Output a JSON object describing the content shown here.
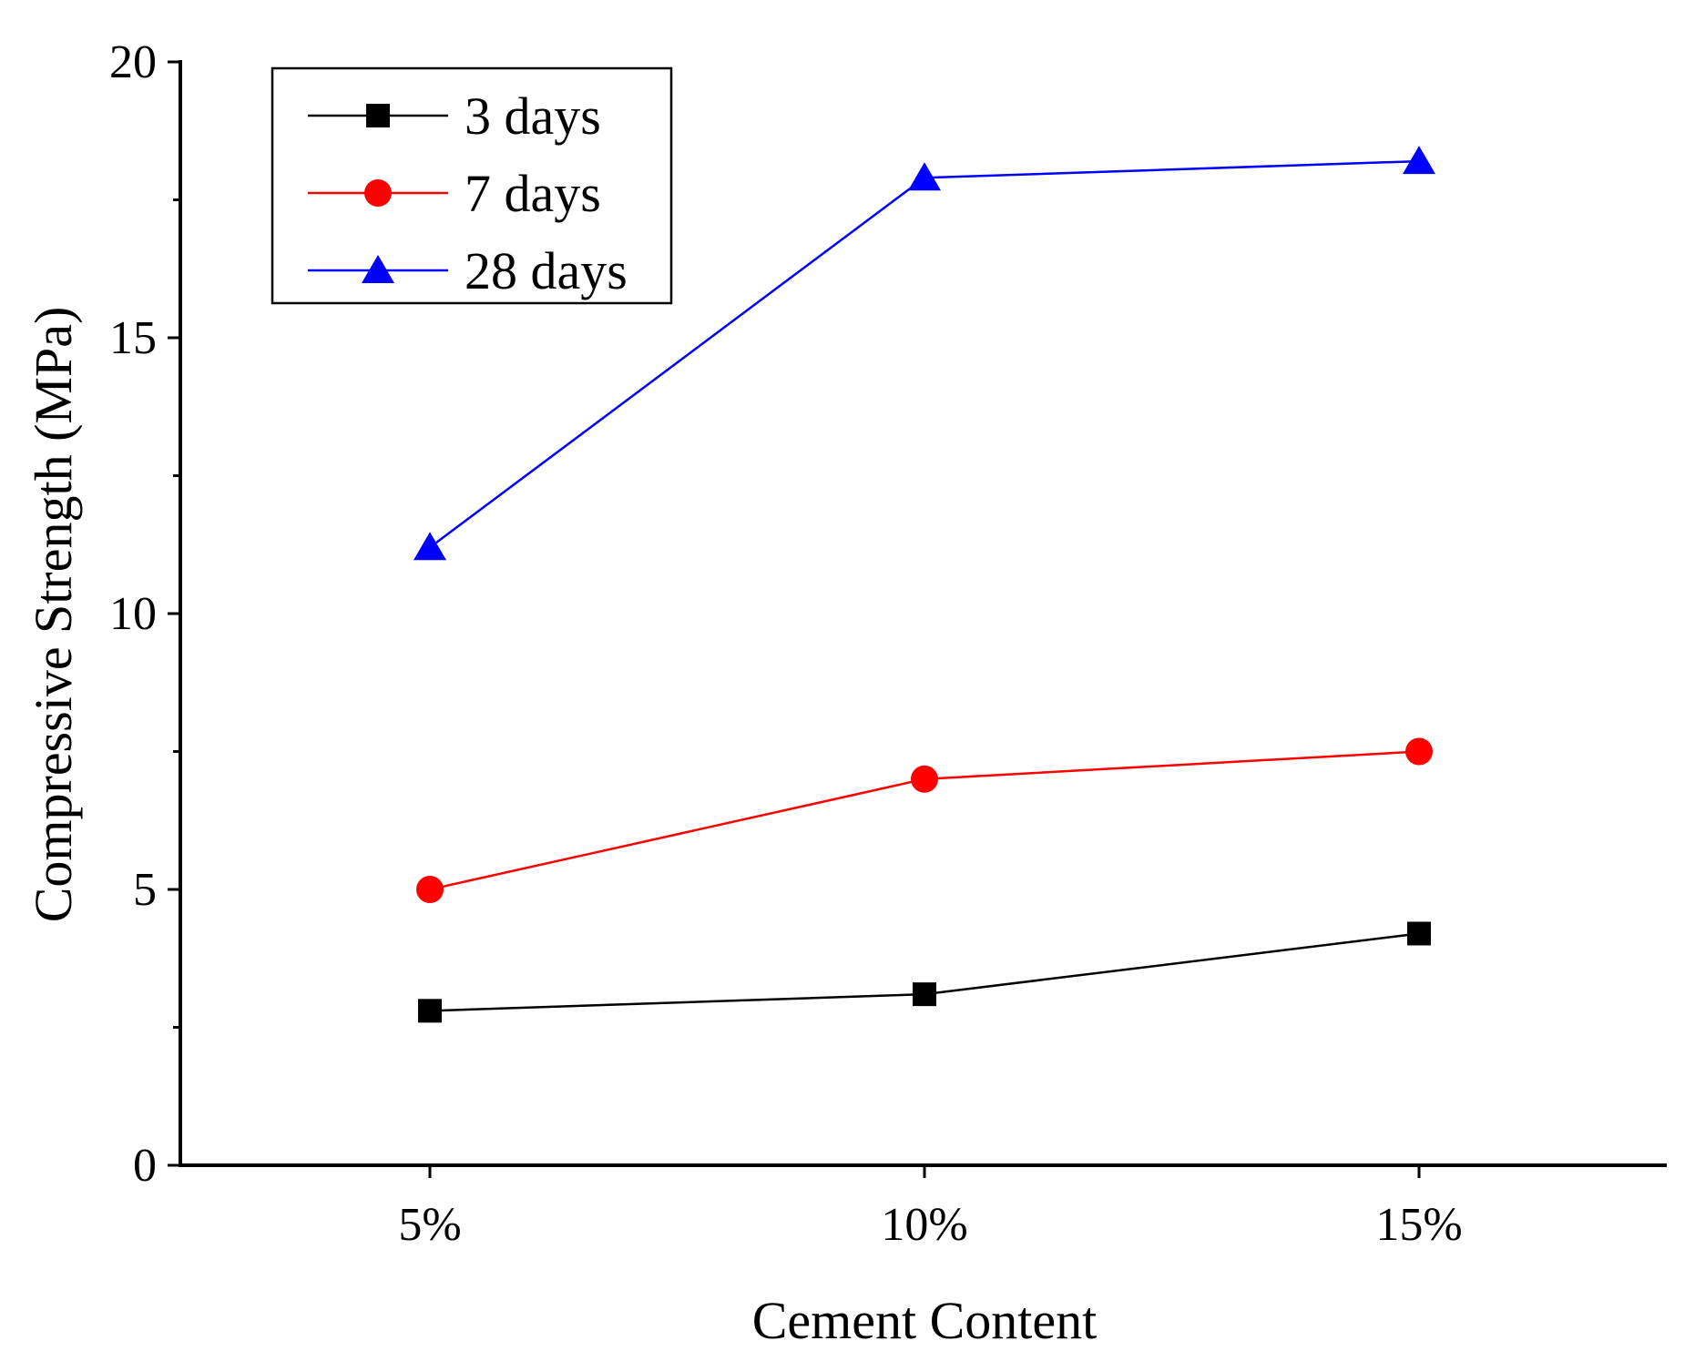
{
  "chart_data": {
    "type": "line",
    "title": "",
    "xlabel": "Cement Content",
    "ylabel": "Compressive Strength (MPa)",
    "categories": [
      "5%",
      "10%",
      "15%"
    ],
    "ylim": [
      0,
      20
    ],
    "yticks": [
      0,
      5,
      10,
      15,
      20
    ],
    "grid": false,
    "legend_position": "top-left",
    "series": [
      {
        "name": "3 days",
        "color": "#000000",
        "marker": "square",
        "values": [
          2.8,
          3.1,
          4.2
        ]
      },
      {
        "name": "7 days",
        "color": "#ff0000",
        "marker": "circle",
        "values": [
          5.0,
          7.0,
          7.5
        ]
      },
      {
        "name": "28 days",
        "color": "#0000ff",
        "marker": "triangle",
        "values": [
          11.2,
          17.9,
          18.2
        ]
      }
    ]
  }
}
